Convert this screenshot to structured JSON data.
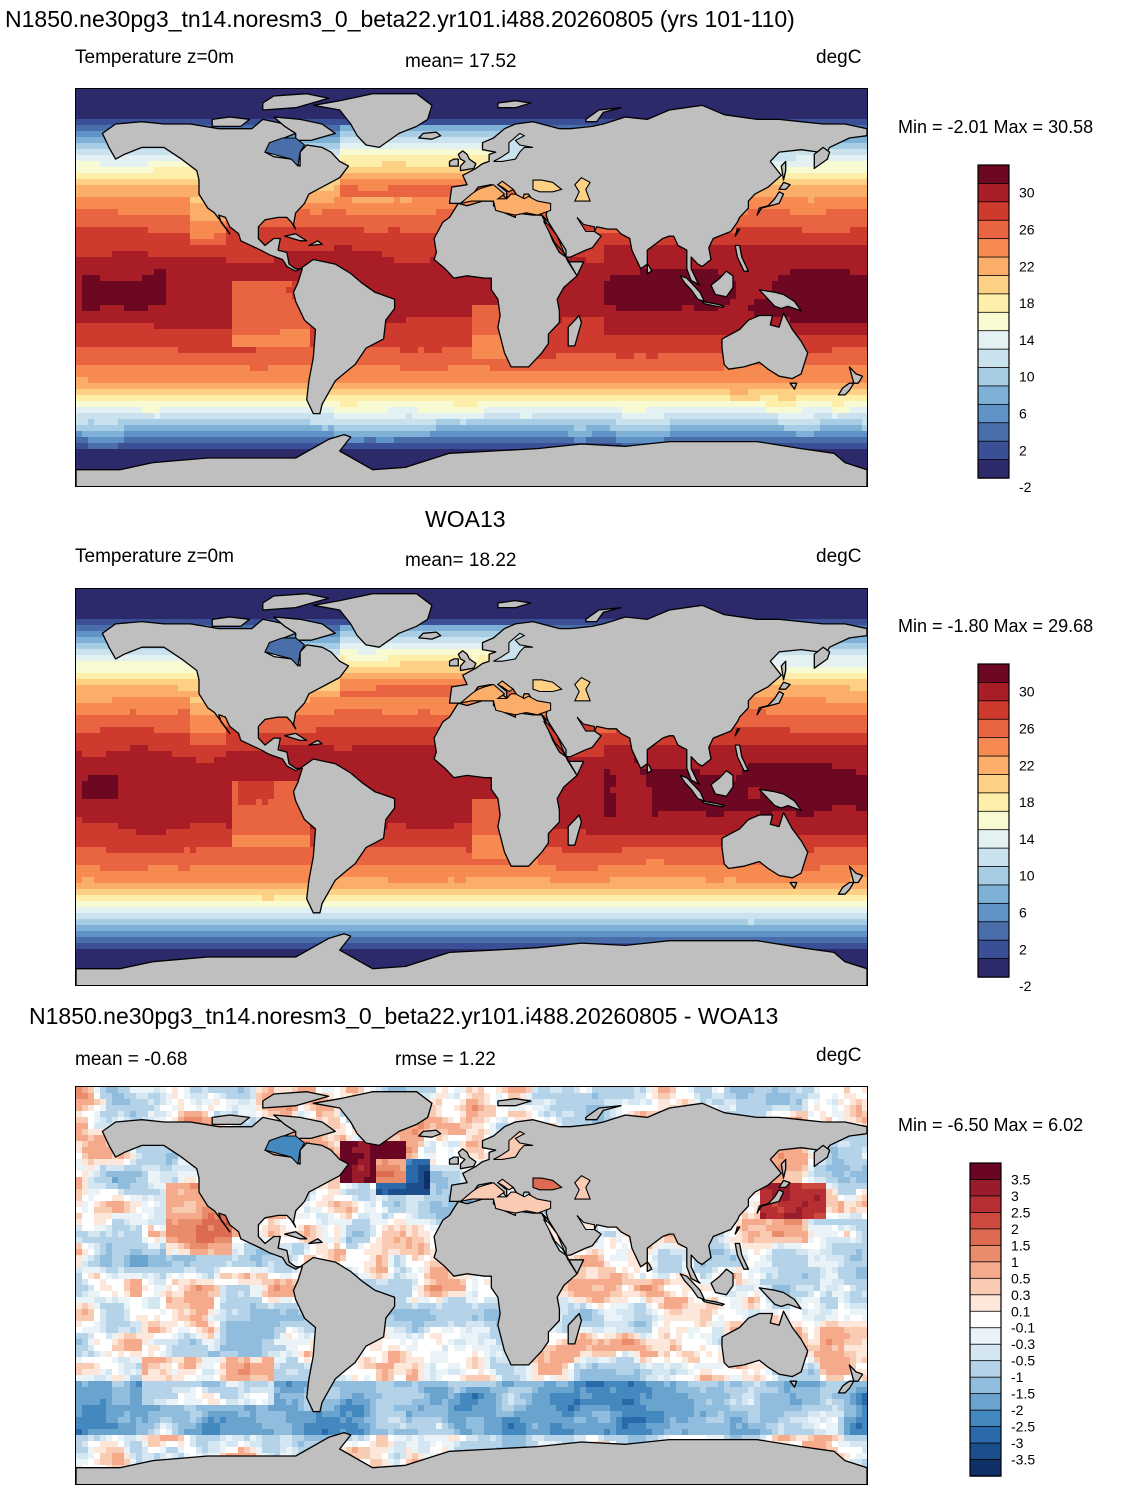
{
  "panels": [
    {
      "id": "model",
      "title": "N1850.ne30pg3_tn14.noresm3_0_beta22.yr101.i488.20260805 (yrs 101-110)",
      "left_label": "Temperature z=0m",
      "center_label": "mean=  17.52",
      "units": "degC",
      "minmax": "Min =  -2.01 Max =  30.58",
      "field_type": "sst"
    },
    {
      "id": "obs",
      "title": "WOA13",
      "left_label": "Temperature z=0m",
      "center_label": "mean=  18.22",
      "units": "degC",
      "minmax": "Min =  -1.80 Max =  29.68",
      "field_type": "sst"
    },
    {
      "id": "diff",
      "title": "N1850.ne30pg3_tn14.noresm3_0_beta22.yr101.i488.20260805 - WOA13",
      "left_label": "mean =  -0.68",
      "center_label": "rmse =   1.22",
      "units": "degC",
      "minmax": "Min =  -6.50 Max =   6.02",
      "field_type": "diff"
    }
  ],
  "colorbars": {
    "sst": {
      "colors": [
        "#2d2a6b",
        "#3a4f96",
        "#4a6ea9",
        "#5f92c6",
        "#7fb1d6",
        "#a6cde3",
        "#cae2ee",
        "#e4f1f2",
        "#f8fbd2",
        "#fdeeaa",
        "#fdd185",
        "#fbae6a",
        "#f68a51",
        "#e96440",
        "#cf3a2e",
        "#a81d26",
        "#6c0821"
      ],
      "labels": [
        "30",
        "26",
        "22",
        "18",
        "14",
        "10",
        "6",
        "2",
        "-2"
      ]
    },
    "diff": {
      "colors": [
        "#0f2f67",
        "#1c4d8c",
        "#2b6aaa",
        "#4488c0",
        "#6ba3cf",
        "#90bddd",
        "#b5d3e8",
        "#d4e6f1",
        "#eaf3f8",
        "#ffffff",
        "#fde6da",
        "#f9cbb2",
        "#f4aa8b",
        "#e88c6c",
        "#dc6b51",
        "#cd4a3f",
        "#b82f33",
        "#991c2c",
        "#6a0624"
      ],
      "labels": [
        "3.5",
        "3",
        "2.5",
        "2",
        "1.5",
        "1",
        "0.5",
        "0.3",
        "0.1",
        "-0.1",
        "-0.3",
        "-0.5",
        "-1",
        "-1.5",
        "-2",
        "-2.5",
        "-3",
        "-3.5"
      ]
    }
  },
  "colors": {
    "land": "#bfbfbf",
    "coast": "#000000"
  }
}
